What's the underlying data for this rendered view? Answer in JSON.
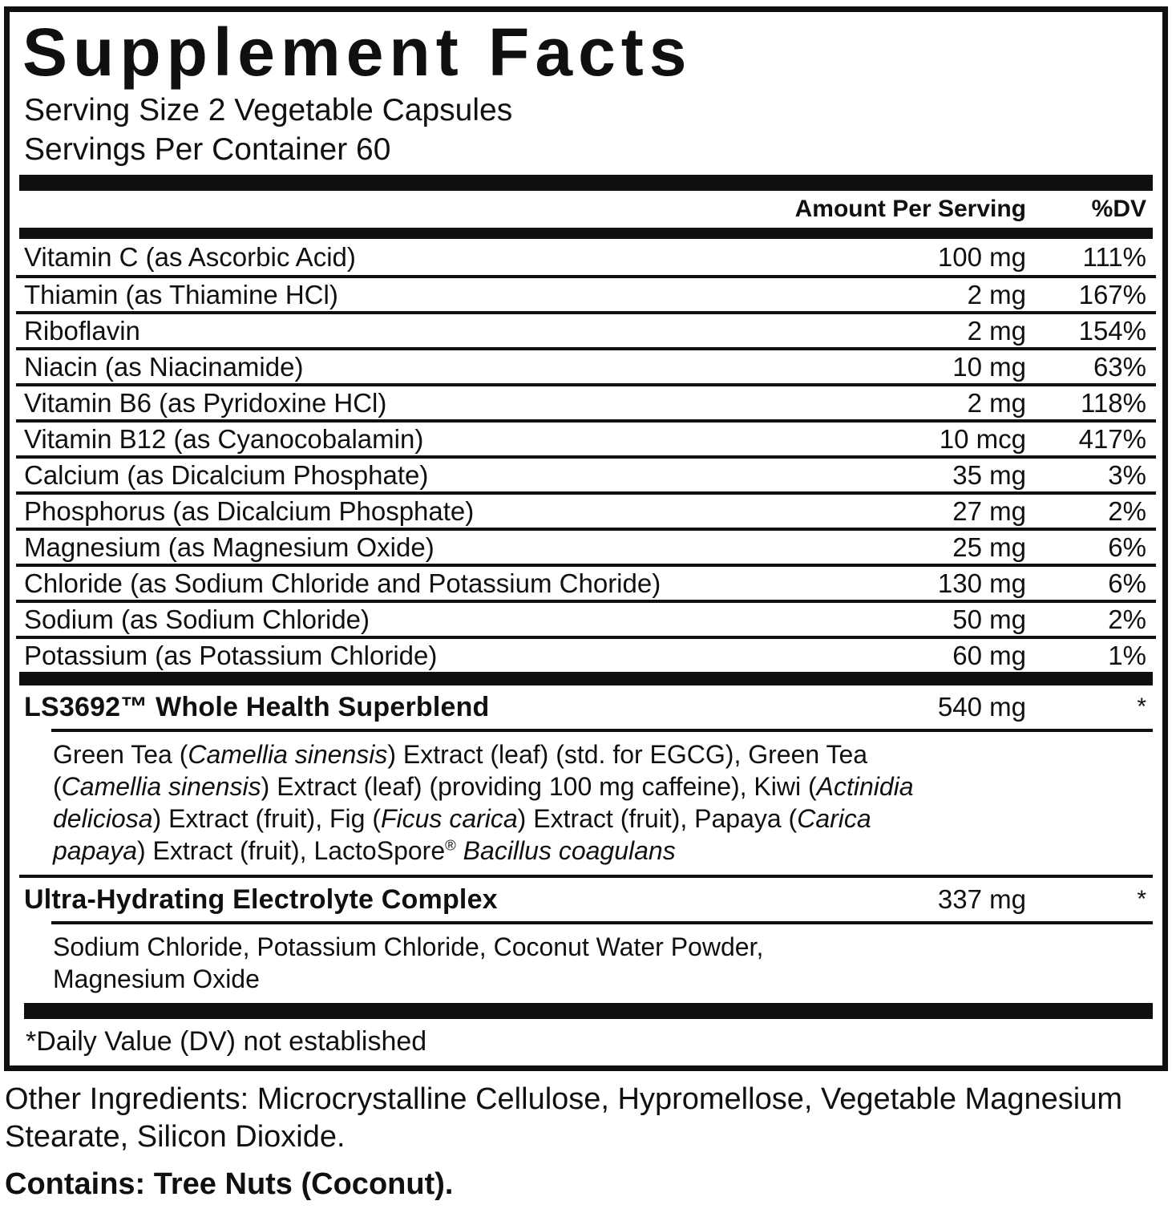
{
  "panel": {
    "title": "Supplement Facts",
    "serving_size": "Serving Size 2 Vegetable Capsules",
    "servings_per_container": "Servings Per Container 60",
    "columns": {
      "amount": "Amount Per Serving",
      "dv": "%DV"
    },
    "nutrients": [
      {
        "name": "Vitamin C (as Ascorbic Acid)",
        "amount": "100 mg",
        "dv": "111%"
      },
      {
        "name": "Thiamin (as Thiamine HCl)",
        "amount": "2 mg",
        "dv": "167%"
      },
      {
        "name": "Riboflavin",
        "amount": "2 mg",
        "dv": "154%"
      },
      {
        "name": "Niacin (as Niacinamide)",
        "amount": "10 mg",
        "dv": "63%"
      },
      {
        "name": "Vitamin B6 (as Pyridoxine HCl)",
        "amount": "2 mg",
        "dv": "118%"
      },
      {
        "name": "Vitamin B12 (as Cyanocobalamin)",
        "amount": "10 mcg",
        "dv": "417%"
      },
      {
        "name": "Calcium (as Dicalcium Phosphate)",
        "amount": "35 mg",
        "dv": "3%"
      },
      {
        "name": "Phosphorus (as Dicalcium Phosphate)",
        "amount": "27 mg",
        "dv": "2%"
      },
      {
        "name": "Magnesium (as Magnesium Oxide)",
        "amount": "25 mg",
        "dv": "6%"
      },
      {
        "name": "Chloride (as Sodium Chloride and Potassium Choride)",
        "amount": "130 mg",
        "dv": "6%"
      },
      {
        "name": "Sodium (as Sodium Chloride)",
        "amount": "50 mg",
        "dv": "2%"
      },
      {
        "name": "Potassium (as Potassium Chloride)",
        "amount": "60 mg",
        "dv": "1%"
      }
    ],
    "blends": [
      {
        "name": "LS3692™ Whole Health Superblend",
        "amount": "540 mg",
        "dv": "*",
        "description": [
          {
            "t": "Green Tea ("
          },
          {
            "t": "Camellia sinensis",
            "i": true
          },
          {
            "t": ") Extract (leaf) (std. for EGCG), Green Tea ("
          },
          {
            "t": "Camellia sinensis",
            "i": true
          },
          {
            "t": ") Extract (leaf) (providing 100 mg caffeine), Kiwi ("
          },
          {
            "t": "Actinidia deliciosa",
            "i": true
          },
          {
            "t": ") Extract (fruit), Fig ("
          },
          {
            "t": "Ficus carica",
            "i": true
          },
          {
            "t": ") Extract (fruit), Papaya ("
          },
          {
            "t": "Carica papaya",
            "i": true
          },
          {
            "t": ") Extract (fruit), LactoSpore"
          },
          {
            "t": "®",
            "sup": true
          },
          {
            "t": " "
          },
          {
            "t": "Bacillus coagulans",
            "i": true
          }
        ]
      },
      {
        "name": "Ultra-Hydrating Electrolyte Complex",
        "amount": "337 mg",
        "dv": "*",
        "description": [
          {
            "t": "Sodium Chloride, Potassium Chloride, Coconut Water Powder, Magnesium Oxide"
          }
        ]
      }
    ],
    "footnote": "*Daily Value (DV) not established",
    "other_ingredients": "Other Ingredients: Microcrystalline Cellulose, Hypromellose, Vegetable Magnesium Stearate, Silicon Dioxide.",
    "contains": "Contains: Tree Nuts (Coconut)."
  },
  "colors": {
    "ink": "#101010",
    "background": "#ffffff"
  }
}
